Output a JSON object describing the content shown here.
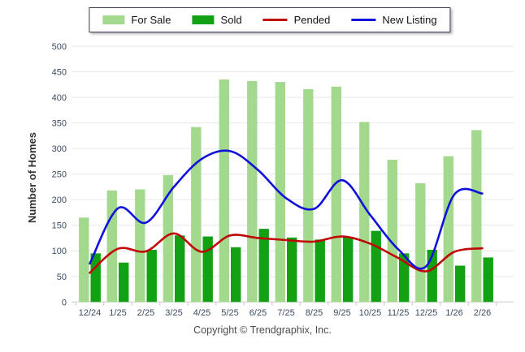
{
  "footer": {
    "copyright": "Copyright © Trendgraphix, Inc."
  },
  "chart_data": {
    "type": "bar",
    "title": "",
    "xlabel": "",
    "ylabel": "Number of Homes",
    "ylim": [
      0,
      500
    ],
    "ytick_step": 50,
    "grid": true,
    "legend_position": "top-center",
    "categories": [
      "12/24",
      "1/25",
      "2/25",
      "3/25",
      "4/25",
      "5/25",
      "6/25",
      "7/25",
      "8/25",
      "9/25",
      "10/25",
      "11/25",
      "12/25",
      "1/26",
      "2/26"
    ],
    "series": [
      {
        "name": "For Sale",
        "kind": "bar",
        "color": "#A3D98D",
        "values": [
          165,
          218,
          220,
          248,
          342,
          435,
          432,
          430,
          416,
          421,
          352,
          278,
          232,
          285,
          336
        ]
      },
      {
        "name": "Sold",
        "kind": "bar",
        "color": "#12A112",
        "values": [
          95,
          77,
          102,
          130,
          128,
          107,
          143,
          126,
          122,
          126,
          139,
          95,
          102,
          71,
          87
        ]
      },
      {
        "name": "Pended",
        "kind": "line",
        "color": "#C00606",
        "values": [
          57,
          104,
          99,
          134,
          98,
          130,
          125,
          121,
          118,
          128,
          114,
          86,
          60,
          98,
          105
        ]
      },
      {
        "name": "New Listing",
        "kind": "line",
        "color": "#1111DD",
        "values": [
          75,
          183,
          155,
          225,
          280,
          295,
          258,
          203,
          182,
          238,
          170,
          103,
          70,
          210,
          212
        ]
      }
    ],
    "grid_color": "#E7E7E7",
    "axis_color": "#C9C9C9"
  }
}
